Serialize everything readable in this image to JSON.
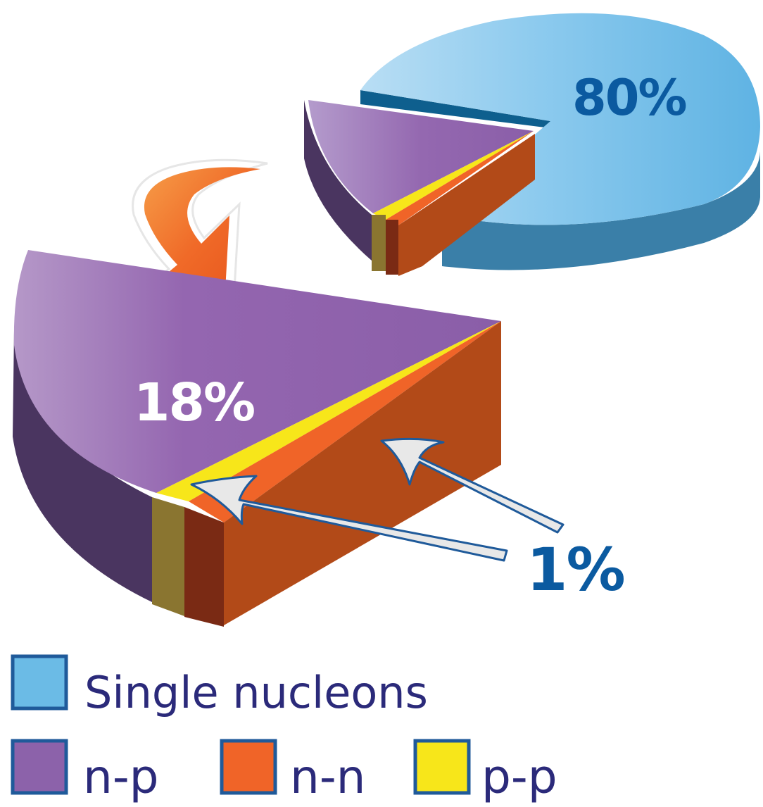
{
  "chart_data": {
    "type": "pie",
    "title": "",
    "slices": [
      {
        "label": "Single nucleons",
        "value": 80,
        "data_label": "80%"
      },
      {
        "label": "n-p",
        "value": 18,
        "data_label": "18%"
      },
      {
        "label": "n-n",
        "value": 1,
        "data_label": "1%"
      },
      {
        "label": "p-p",
        "value": 1,
        "data_label": "1%"
      }
    ],
    "exploded": "n-p, n-n and p-p slices are pulled out and shown enlarged in a detail view",
    "legend": [
      "Single nucleons",
      "n-p",
      "n-n",
      "p-p"
    ],
    "legend_placement": "bottom"
  },
  "labels": {
    "single_pct": "80%",
    "np_pct": "18%",
    "small_pct": "1%"
  },
  "legend": {
    "single": "Single nucleons",
    "np": "n-p",
    "nn": "n-n",
    "pp": "p-p"
  },
  "colors": {
    "single_top": "#6bbbe6",
    "single_side": "#3a7fa8",
    "np_top": "#8c62aa",
    "np_side": "#4a3560",
    "nn_top": "#f06428",
    "nn_side": "#b24a18",
    "pp_top": "#f7e61a",
    "pp_side": "#8a7530",
    "text_blue": "#0b5aa0",
    "legend_text": "#2b2a7a",
    "legend_border": "#1f5a9a"
  }
}
